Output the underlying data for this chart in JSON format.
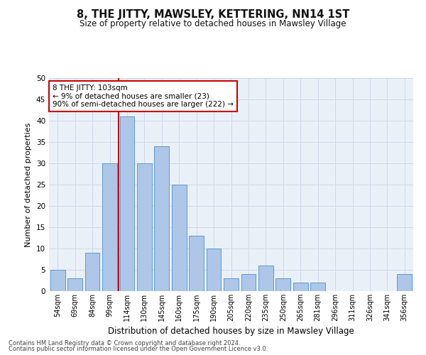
{
  "title": "8, THE JITTY, MAWSLEY, KETTERING, NN14 1ST",
  "subtitle": "Size of property relative to detached houses in Mawsley Village",
  "xlabel": "Distribution of detached houses by size in Mawsley Village",
  "ylabel": "Number of detached properties",
  "categories": [
    "54sqm",
    "69sqm",
    "84sqm",
    "99sqm",
    "114sqm",
    "130sqm",
    "145sqm",
    "160sqm",
    "175sqm",
    "190sqm",
    "205sqm",
    "220sqm",
    "235sqm",
    "250sqm",
    "265sqm",
    "281sqm",
    "296sqm",
    "311sqm",
    "326sqm",
    "341sqm",
    "356sqm"
  ],
  "values": [
    5,
    3,
    9,
    30,
    41,
    30,
    34,
    25,
    13,
    10,
    3,
    4,
    6,
    3,
    2,
    2,
    0,
    0,
    0,
    0,
    4
  ],
  "bar_color": "#aec6e8",
  "bar_edge_color": "#5b9bd5",
  "vline_x": 3.5,
  "vline_color": "#cc0000",
  "annotation_text": "8 THE JITTY: 103sqm\n← 9% of detached houses are smaller (23)\n90% of semi-detached houses are larger (222) →",
  "annotation_box_color": "#ffffff",
  "annotation_box_edge": "#cc0000",
  "ylim": [
    0,
    50
  ],
  "yticks": [
    0,
    5,
    10,
    15,
    20,
    25,
    30,
    35,
    40,
    45,
    50
  ],
  "footer1": "Contains HM Land Registry data © Crown copyright and database right 2024.",
  "footer2": "Contains public sector information licensed under the Open Government Licence v3.0.",
  "grid_color": "#d0d8e8",
  "bg_color": "#eaf0f8",
  "title_fontsize": 10.5,
  "subtitle_fontsize": 8.5
}
